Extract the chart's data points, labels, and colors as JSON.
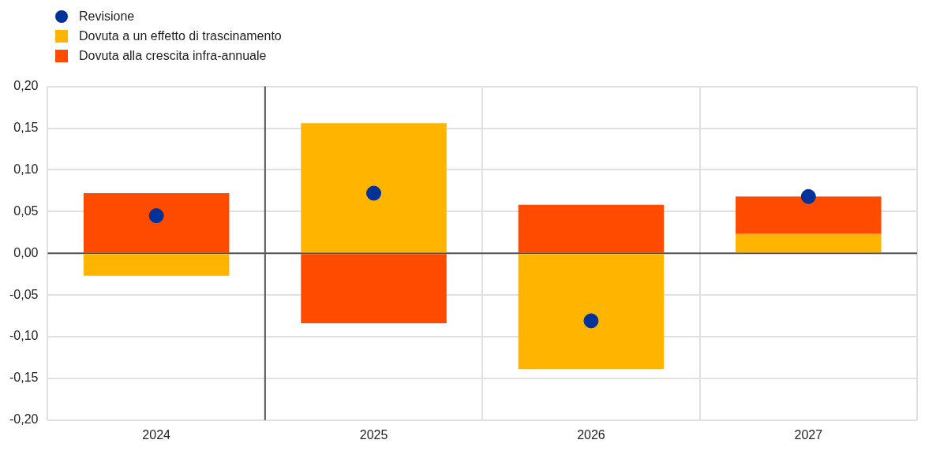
{
  "chart_data": {
    "type": "bar",
    "stacked": true,
    "categories": [
      "2024",
      "2025",
      "2026",
      "2027"
    ],
    "series": [
      {
        "name": "Revisione",
        "type": "scatter",
        "color": "#003299",
        "values": [
          0.045,
          0.072,
          -0.081,
          0.068
        ]
      },
      {
        "name": "Dovuta a un effetto di trascinamento",
        "color": "#ffb400",
        "values": [
          -0.027,
          0.156,
          -0.139,
          0.023
        ]
      },
      {
        "name": "Dovuta alla crescita infra-annuale",
        "color": "#ff4b00",
        "values": [
          0.072,
          -0.084,
          0.058,
          0.045
        ]
      }
    ],
    "ylim": [
      -0.2,
      0.2
    ],
    "yticks": [
      {
        "value": -0.2,
        "label": "-0,20"
      },
      {
        "value": -0.15,
        "label": "-0,15"
      },
      {
        "value": -0.1,
        "label": "-0,10"
      },
      {
        "value": -0.05,
        "label": "-0,05"
      },
      {
        "value": 0,
        "label": "0,00"
      },
      {
        "value": 0.05,
        "label": "0,05"
      },
      {
        "value": 0.1,
        "label": "0,10"
      },
      {
        "value": 0.15,
        "label": "0,15"
      },
      {
        "value": 0.2,
        "label": "0,20"
      }
    ],
    "grid": true,
    "legend": "top left",
    "marker": "circle"
  }
}
